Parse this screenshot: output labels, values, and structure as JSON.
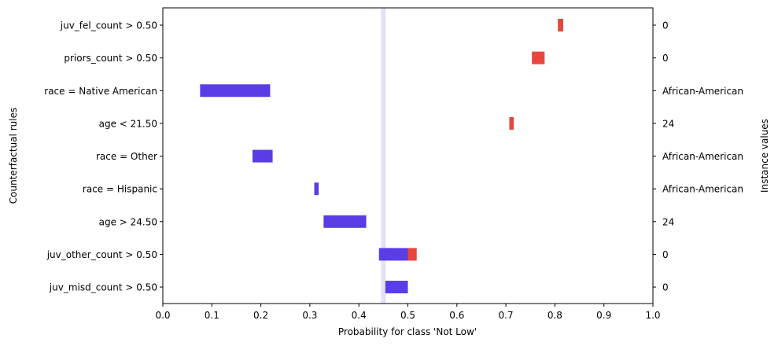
{
  "chart_data": {
    "type": "bar",
    "orientation": "horizontal-interval",
    "xlabel": "Probability for class 'Not Low'",
    "ylabel": "Counterfactual rules",
    "ylabel_right": "Instance values",
    "xlim": [
      0.0,
      1.0
    ],
    "xticks": [
      "0.0",
      "0.1",
      "0.2",
      "0.3",
      "0.4",
      "0.5",
      "0.6",
      "0.7",
      "0.8",
      "0.9",
      "1.0"
    ],
    "grid": false,
    "reference_line": {
      "x": 0.45,
      "color": "#e3e0f7"
    },
    "colors": {
      "negative": "#5a3de6",
      "positive": "#e8463d"
    },
    "rules": [
      {
        "label": "juv_fel_count > 0.50",
        "instance_value": "0",
        "segments": [
          {
            "from": 0.806,
            "to": 0.817,
            "color": "positive"
          }
        ]
      },
      {
        "label": "priors_count > 0.50",
        "instance_value": "0",
        "segments": [
          {
            "from": 0.753,
            "to": 0.779,
            "color": "positive"
          }
        ]
      },
      {
        "label": "race = Native American",
        "instance_value": "African-American",
        "segments": [
          {
            "from": 0.076,
            "to": 0.219,
            "color": "negative"
          }
        ]
      },
      {
        "label": "age < 21.50",
        "instance_value": "24",
        "segments": [
          {
            "from": 0.707,
            "to": 0.716,
            "color": "positive"
          }
        ]
      },
      {
        "label": "race = Other",
        "instance_value": "African-American",
        "segments": [
          {
            "from": 0.183,
            "to": 0.224,
            "color": "negative"
          }
        ]
      },
      {
        "label": "race = Hispanic",
        "instance_value": "African-American",
        "segments": [
          {
            "from": 0.309,
            "to": 0.318,
            "color": "negative"
          }
        ]
      },
      {
        "label": "age > 24.50",
        "instance_value": "24",
        "segments": [
          {
            "from": 0.328,
            "to": 0.415,
            "color": "negative"
          }
        ]
      },
      {
        "label": "juv_other_count > 0.50",
        "instance_value": "0",
        "segments": [
          {
            "from": 0.441,
            "to": 0.5,
            "color": "negative"
          },
          {
            "from": 0.5,
            "to": 0.518,
            "color": "positive"
          }
        ]
      },
      {
        "label": "juv_misd_count > 0.50",
        "instance_value": "0",
        "segments": [
          {
            "from": 0.454,
            "to": 0.5,
            "color": "negative"
          }
        ]
      }
    ]
  }
}
